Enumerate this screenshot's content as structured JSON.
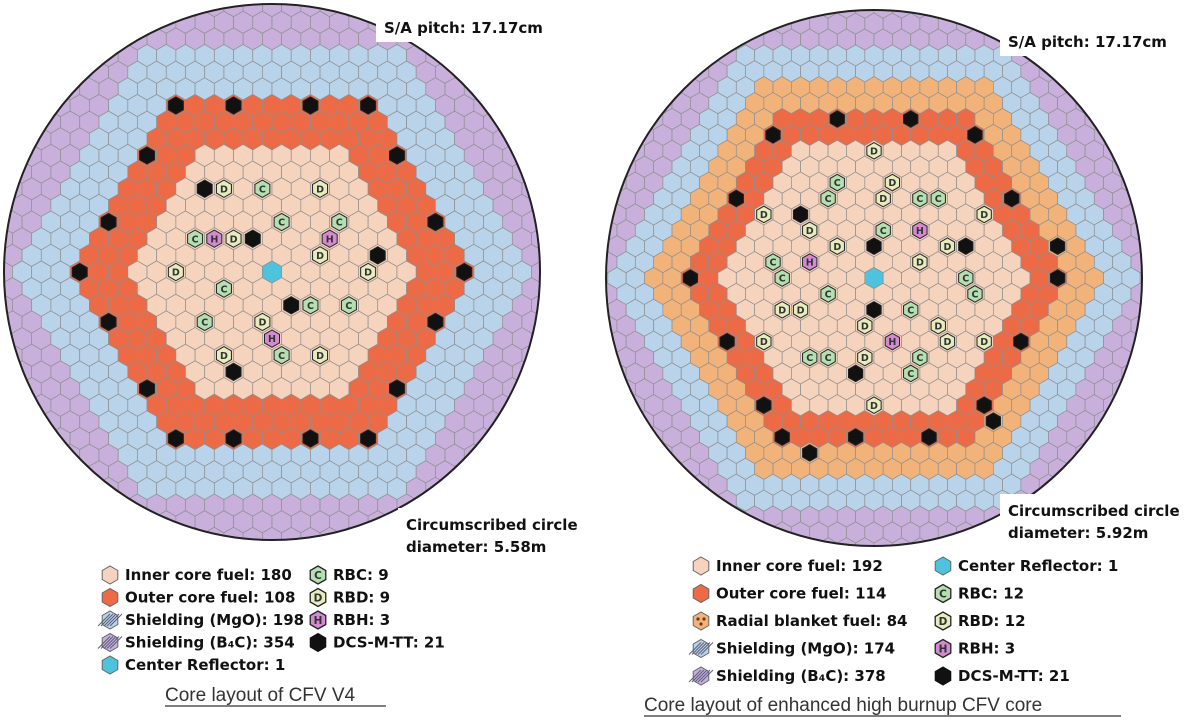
{
  "colors": {
    "inner": "#f6d3bd",
    "outer": "#ec6a45",
    "blanket": "#f1b37a",
    "mgo": "#b8d3ea",
    "b4c": "#c9b0dc",
    "reflector": "#4ec3dd",
    "rbc": "#b4dfb0",
    "rbd": "#e7ecbf",
    "rbh": "#d48ad0",
    "dcs": "#111111",
    "grid": "#8f8f8f"
  },
  "panels": [
    {
      "pitch_label": "S/A pitch: 17.17cm",
      "circle_line1": "Circumscribed circle",
      "circle_line2": "diameter:  5.58m",
      "caption": "Core layout of CFV V4",
      "legend": [
        {
          "symbol": "inner",
          "text": "Inner core fuel: 180"
        },
        {
          "symbol": "outer",
          "text": "Outer core fuel: 108"
        },
        {
          "symbol": "mgo",
          "text": "Shielding (MgO): 198"
        },
        {
          "symbol": "b4c",
          "text": "Shielding (B₄C): 354"
        },
        {
          "symbol": "reflector",
          "text": "Center Reflector: 1"
        },
        {
          "symbol": "rbc",
          "text": "RBC: 9"
        },
        {
          "symbol": "rbd",
          "text": "RBD: 9"
        },
        {
          "symbol": "rbh",
          "text": "RBH: 3"
        },
        {
          "symbol": "dcs",
          "text": "DCS-M-TT: 21"
        }
      ]
    },
    {
      "pitch_label": "S/A pitch: 17.17cm",
      "circle_line1": "Circumscribed circle",
      "circle_line2": "diameter:  5.92m",
      "caption": "Core layout of enhanced high burnup CFV core",
      "legend": [
        {
          "symbol": "inner",
          "text": "Inner core fuel: 192"
        },
        {
          "symbol": "outer",
          "text": "Outer core fuel: 114"
        },
        {
          "symbol": "blanket",
          "text": "Radial blanket fuel: 84"
        },
        {
          "symbol": "mgo",
          "text": "Shielding (MgO): 174"
        },
        {
          "symbol": "b4c",
          "text": "Shielding (B₄C): 378"
        },
        {
          "symbol": "reflector",
          "text": "Center Reflector: 1"
        },
        {
          "symbol": "rbc",
          "text": "RBC: 12"
        },
        {
          "symbol": "rbd",
          "text": "RBD: 12"
        },
        {
          "symbol": "rbh",
          "text": "RBH: 3"
        },
        {
          "symbol": "dcs",
          "text": "DCS-M-TT: 21"
        }
      ]
    }
  ],
  "rod_letters": {
    "rbc": "C",
    "rbd": "D",
    "rbh": "H"
  }
}
